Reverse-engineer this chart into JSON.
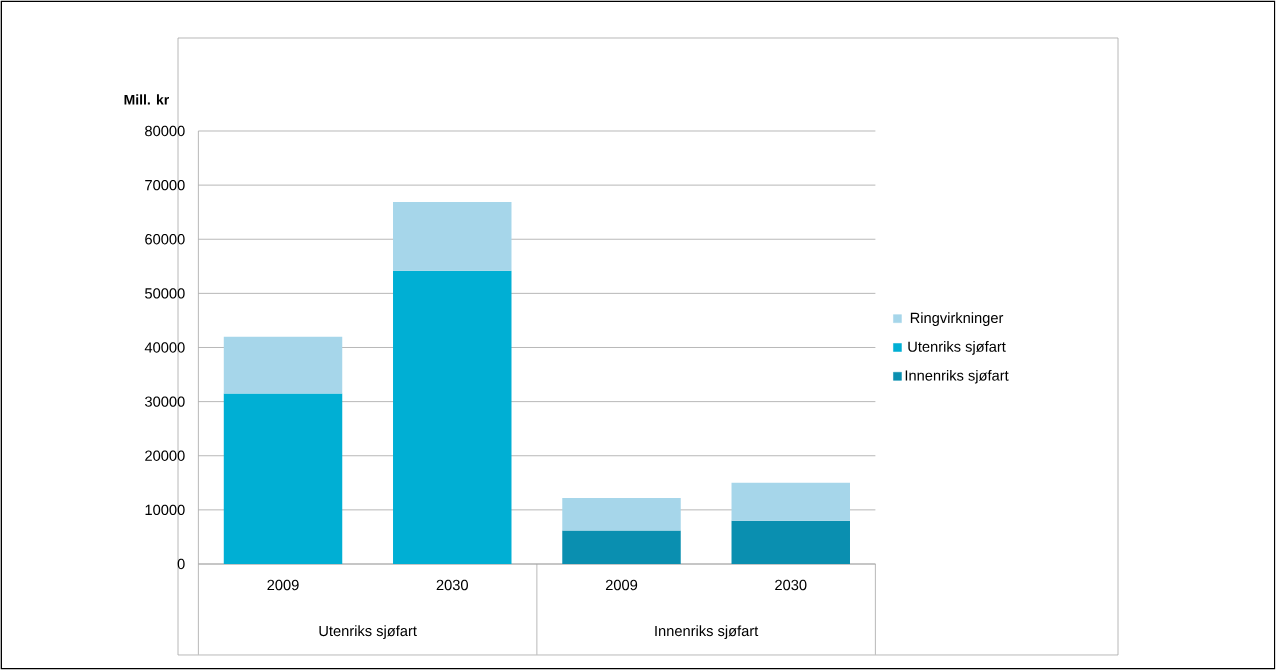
{
  "chart_data": {
    "type": "bar",
    "stacked": true,
    "ylabel": "Mill. kr",
    "categories": [
      "2009",
      "2030",
      "2009",
      "2030"
    ],
    "annotations": [
      "Utenriks sjøfart",
      "Innenriks sjøfart"
    ],
    "series": [
      {
        "name": "Innenriks sjøfart",
        "color": "#0a8fb0",
        "values": [
          null,
          null,
          6200,
          8000
        ]
      },
      {
        "name": "Utenriks sjøfart",
        "color": "#00afd4",
        "values": [
          31500,
          54200,
          null,
          null
        ]
      },
      {
        "name": "Ringvirkninger",
        "color": "#a6d6ea",
        "values": [
          10500,
          12700,
          6000,
          7000
        ]
      }
    ],
    "ylim": [
      0,
      80000
    ],
    "yticks": [
      0,
      10000,
      20000,
      30000,
      40000,
      50000,
      60000,
      70000,
      80000
    ],
    "grid": "y",
    "legend": "right"
  }
}
